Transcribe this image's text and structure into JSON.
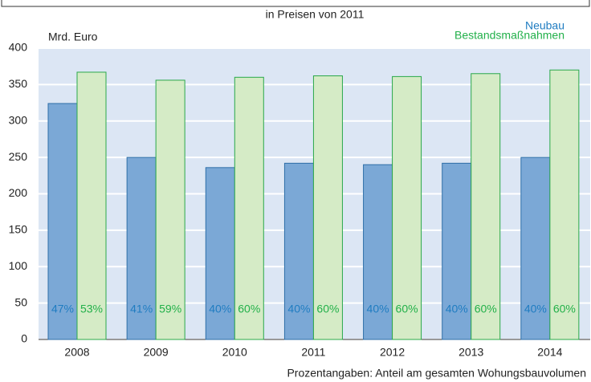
{
  "chart_data": {
    "type": "bar",
    "subtitle": "in Preisen von 2011",
    "y_label": "Mrd. Euro",
    "footnote": "Prozentangaben: Anteil am gesamten Wohungsbauvolumen",
    "categories": [
      "2008",
      "2009",
      "2010",
      "2011",
      "2012",
      "2013",
      "2014"
    ],
    "series": [
      {
        "name": "Neubau",
        "color": "#7ba8d6",
        "stroke": "#2f6fa8",
        "label_color": "#1f7cc1",
        "values": [
          324,
          250,
          236,
          242,
          240,
          242,
          250
        ],
        "labels": [
          "47%",
          "41%",
          "40%",
          "40%",
          "40%",
          "40%",
          "40%"
        ]
      },
      {
        "name": "Bestandsmaßnahmen",
        "color": "#d5ebc6",
        "stroke": "#2aa84a",
        "label_color": "#22b04a",
        "values": [
          367,
          356,
          360,
          362,
          361,
          365,
          370
        ],
        "labels": [
          "53%",
          "59%",
          "60%",
          "60%",
          "60%",
          "60%",
          "60%"
        ]
      }
    ],
    "ylim": [
      0,
      400
    ],
    "yticks": [
      0,
      50,
      100,
      150,
      200,
      250,
      300,
      350,
      400
    ],
    "grid": true,
    "background": "#dce6f4"
  }
}
